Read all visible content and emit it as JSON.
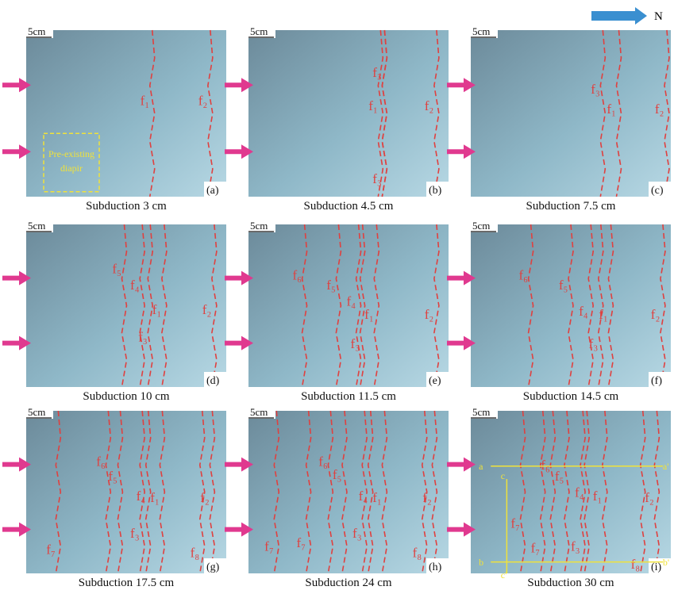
{
  "compass": "N",
  "panels": [
    {
      "id": "(a)",
      "caption": "Subduction 3 cm",
      "scale": "5cm",
      "faults": [
        "f₁",
        "f₂"
      ],
      "annotation": [
        "Pre-existing",
        "diapir"
      ]
    },
    {
      "id": "(b)",
      "caption": "Subduction 4.5 cm",
      "scale": "5cm",
      "faults": [
        "f₃",
        "f₁",
        "f₂",
        "f₃"
      ]
    },
    {
      "id": "(c)",
      "caption": "Subduction 7.5 cm",
      "scale": "5cm",
      "faults": [
        "f₃",
        "f₁",
        "f₂"
      ]
    },
    {
      "id": "(d)",
      "caption": "Subduction 10 cm",
      "scale": "5cm",
      "faults": [
        "f₅",
        "f₄",
        "f₁",
        "f₃",
        "f₂"
      ]
    },
    {
      "id": "(e)",
      "caption": "Subduction 11.5 cm",
      "scale": "5cm",
      "faults": [
        "f₆",
        "f₅",
        "f₄",
        "f₁",
        "f₃",
        "f₂"
      ]
    },
    {
      "id": "(f)",
      "caption": "Subduction 14.5 cm",
      "scale": "5cm",
      "faults": [
        "f₆",
        "f₅",
        "f₄",
        "f₁",
        "f₃",
        "f₂"
      ]
    },
    {
      "id": "(g)",
      "caption": "Subduction 17.5 cm",
      "scale": "5cm",
      "faults": [
        "f₆",
        "f₅",
        "f₄",
        "f₁",
        "f₃",
        "f₂",
        "f₇",
        "f₈"
      ]
    },
    {
      "id": "(h)",
      "caption": "Subduction 24 cm",
      "scale": "5cm",
      "faults": [
        "f₆",
        "f₅",
        "f₄",
        "f₁",
        "f₃",
        "f₂",
        "f₇",
        "f₇",
        "f₈"
      ]
    },
    {
      "id": "(i)",
      "caption": "Subduction 30 cm",
      "scale": "5cm",
      "faults": [
        "f₆",
        "f₅",
        "f₄",
        "f₁",
        "f₇",
        "f₇",
        "f₃",
        "f₂",
        "f₈"
      ],
      "section_labels": [
        "a",
        "a'",
        "b",
        "b'",
        "c",
        "c'"
      ]
    }
  ]
}
